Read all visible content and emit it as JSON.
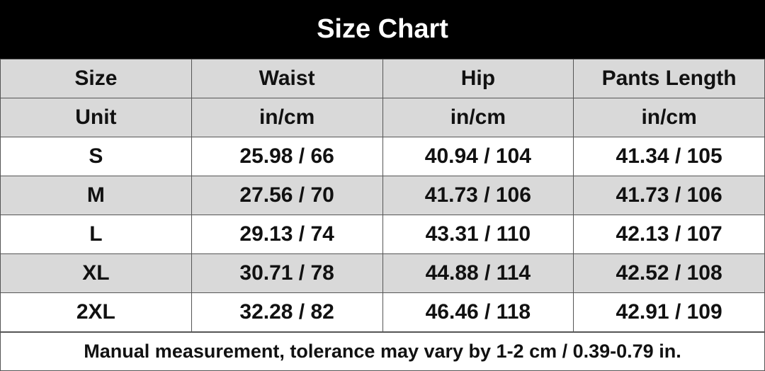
{
  "header": {
    "title": "Size Chart"
  },
  "table": {
    "columns": [
      "Size",
      "Waist",
      "Hip",
      "Pants Length"
    ],
    "units": [
      "Unit",
      "in/cm",
      "in/cm",
      "in/cm"
    ],
    "rows": [
      [
        "S",
        "25.98 / 66",
        "40.94 / 104",
        "41.34 / 105"
      ],
      [
        "M",
        "27.56 / 70",
        "41.73 / 106",
        "41.73 / 106"
      ],
      [
        "L",
        "29.13 / 74",
        "43.31 / 110",
        "42.13 / 107"
      ],
      [
        "XL",
        "30.71 / 78",
        "44.88 / 114",
        "42.52 / 108"
      ],
      [
        "2XL",
        "32.28 / 82",
        "46.46 / 118",
        "42.91 / 109"
      ]
    ]
  },
  "footer": {
    "note": "Manual measurement, tolerance may vary by 1-2 cm / 0.39-0.79 in."
  }
}
